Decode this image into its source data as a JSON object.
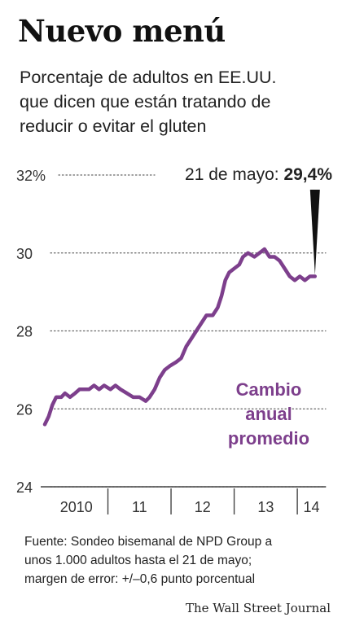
{
  "header": {
    "title": "Nuevo menú",
    "subtitle_lines": [
      "Porcentaje de adultos en EE.UU.",
      "que dicen que están tratando de",
      "reducir o evitar el gluten"
    ]
  },
  "chart_data": {
    "type": "line",
    "y_unit": "%",
    "ylim": [
      24,
      32
    ],
    "yticks": [
      {
        "value": 32,
        "label": "32%"
      },
      {
        "value": 30,
        "label": "30"
      },
      {
        "value": 28,
        "label": "28"
      },
      {
        "value": 26,
        "label": "26"
      },
      {
        "value": 24,
        "label": "24"
      }
    ],
    "xlim": [
      2010.0,
      2014.45
    ],
    "xticks": [
      {
        "label": "2010",
        "start": 2010.0,
        "end": 2011.0
      },
      {
        "label": "11",
        "start": 2011.0,
        "end": 2012.0
      },
      {
        "label": "12",
        "start": 2012.0,
        "end": 2013.0
      },
      {
        "label": "13",
        "start": 2013.0,
        "end": 2014.0
      },
      {
        "label": "14",
        "start": 2014.0,
        "end": 2014.45
      }
    ],
    "grid": "dotted-horizontal",
    "line_color": "#7d3f8c",
    "series": [
      {
        "values": [
          {
            "x": 2010.0,
            "y": 25.6
          },
          {
            "x": 2010.06,
            "y": 25.8
          },
          {
            "x": 2010.12,
            "y": 26.1
          },
          {
            "x": 2010.18,
            "y": 26.3
          },
          {
            "x": 2010.26,
            "y": 26.3
          },
          {
            "x": 2010.32,
            "y": 26.4
          },
          {
            "x": 2010.4,
            "y": 26.3
          },
          {
            "x": 2010.48,
            "y": 26.4
          },
          {
            "x": 2010.55,
            "y": 26.5
          },
          {
            "x": 2010.62,
            "y": 26.5
          },
          {
            "x": 2010.7,
            "y": 26.5
          },
          {
            "x": 2010.78,
            "y": 26.6
          },
          {
            "x": 2010.86,
            "y": 26.5
          },
          {
            "x": 2010.94,
            "y": 26.6
          },
          {
            "x": 2011.04,
            "y": 26.5
          },
          {
            "x": 2011.12,
            "y": 26.6
          },
          {
            "x": 2011.2,
            "y": 26.5
          },
          {
            "x": 2011.3,
            "y": 26.4
          },
          {
            "x": 2011.4,
            "y": 26.3
          },
          {
            "x": 2011.5,
            "y": 26.3
          },
          {
            "x": 2011.6,
            "y": 26.2
          },
          {
            "x": 2011.66,
            "y": 26.3
          },
          {
            "x": 2011.74,
            "y": 26.5
          },
          {
            "x": 2011.82,
            "y": 26.8
          },
          {
            "x": 2011.9,
            "y": 27.0
          },
          {
            "x": 2011.98,
            "y": 27.1
          },
          {
            "x": 2012.08,
            "y": 27.2
          },
          {
            "x": 2012.16,
            "y": 27.3
          },
          {
            "x": 2012.24,
            "y": 27.6
          },
          {
            "x": 2012.32,
            "y": 27.8
          },
          {
            "x": 2012.4,
            "y": 28.0
          },
          {
            "x": 2012.48,
            "y": 28.2
          },
          {
            "x": 2012.56,
            "y": 28.4
          },
          {
            "x": 2012.66,
            "y": 28.4
          },
          {
            "x": 2012.74,
            "y": 28.6
          },
          {
            "x": 2012.8,
            "y": 28.9
          },
          {
            "x": 2012.86,
            "y": 29.3
          },
          {
            "x": 2012.92,
            "y": 29.5
          },
          {
            "x": 2013.0,
            "y": 29.6
          },
          {
            "x": 2013.08,
            "y": 29.7
          },
          {
            "x": 2013.14,
            "y": 29.9
          },
          {
            "x": 2013.22,
            "y": 30.0
          },
          {
            "x": 2013.32,
            "y": 29.9
          },
          {
            "x": 2013.4,
            "y": 30.0
          },
          {
            "x": 2013.48,
            "y": 30.1
          },
          {
            "x": 2013.56,
            "y": 29.9
          },
          {
            "x": 2013.64,
            "y": 29.9
          },
          {
            "x": 2013.72,
            "y": 29.8
          },
          {
            "x": 2013.8,
            "y": 29.6
          },
          {
            "x": 2013.88,
            "y": 29.4
          },
          {
            "x": 2013.96,
            "y": 29.3
          },
          {
            "x": 2014.04,
            "y": 29.4
          },
          {
            "x": 2014.12,
            "y": 29.3
          },
          {
            "x": 2014.2,
            "y": 29.4
          },
          {
            "x": 2014.28,
            "y": 29.4
          }
        ]
      }
    ],
    "callout": {
      "label": "21 de mayo: ",
      "value": "29,4%",
      "x": 2014.28,
      "y": 29.4
    },
    "annotation_lines": [
      "Cambio",
      "anual",
      "promedio"
    ]
  },
  "footer": {
    "source_lines": [
      "Fuente: Sondeo bisemanal de NPD Group a",
      "unos 1.000 adultos hasta el 21 de mayo;",
      "margen de error: +/–0,6 punto porcentual"
    ],
    "credit": "The Wall Street Journal"
  }
}
